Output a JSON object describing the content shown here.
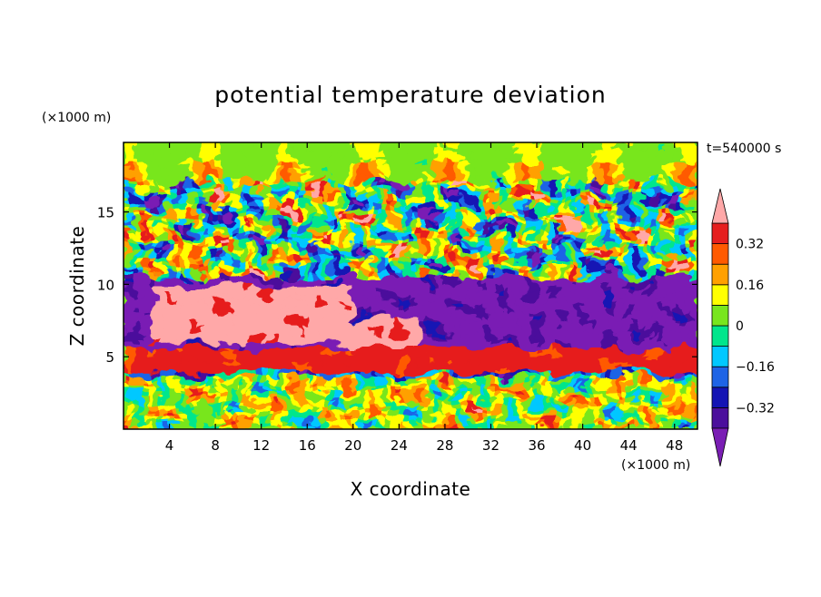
{
  "chart_data": {
    "type": "heatmap",
    "title": "potential temperature deviation",
    "xlabel": "X coordinate",
    "ylabel": "Z coordinate",
    "x_unit": "(×1000 m)",
    "y_unit": "(×1000 m)",
    "time_label": "t=540000 s",
    "xlim": [
      0,
      50
    ],
    "ylim": [
      0,
      19.8
    ],
    "x_ticks": [
      4,
      8,
      12,
      16,
      20,
      24,
      28,
      32,
      36,
      40,
      44,
      48
    ],
    "y_ticks": [
      5,
      10,
      15
    ],
    "colorbar": {
      "levels": [
        -0.4,
        -0.32,
        -0.24,
        -0.16,
        -0.08,
        0,
        0.08,
        0.16,
        0.24,
        0.32,
        0.4
      ],
      "labels": [
        "0.32",
        "0.16",
        "0",
        "−0.16",
        "−0.32"
      ],
      "label_values": [
        0.32,
        0.16,
        0,
        -0.16,
        -0.32
      ],
      "colors": [
        "#7a1eb4",
        "#4b0f9c",
        "#1414b4",
        "#1e64e6",
        "#00c8ff",
        "#00e68c",
        "#78e61e",
        "#ffff00",
        "#ffa000",
        "#ff5a00",
        "#e61e1e",
        "#ffa8a8"
      ],
      "extends": "both"
    },
    "layers": [
      {
        "z_range": [
          17,
          19.8
        ],
        "description_values": "mostly ~0 to 0.08 (green), with positive patches near the top"
      },
      {
        "z_range": [
          10.5,
          17
        ],
        "description_values": "alternating strong negative (<-0.32) and strong positive (>0.4) cells"
      },
      {
        "z_range": [
          6,
          10
        ],
        "description_values": "large positive region (>0.4) for X 2–20, negative (<-0.32) elsewhere"
      },
      {
        "z_range": [
          4.2,
          5.5
        ],
        "description_values": "continuous positive band ~0.32–0.4"
      },
      {
        "z_range": [
          0,
          3.5
        ],
        "description_values": "mixed values, roughly -0.16 to 0.32, turbulent eddies"
      }
    ]
  }
}
